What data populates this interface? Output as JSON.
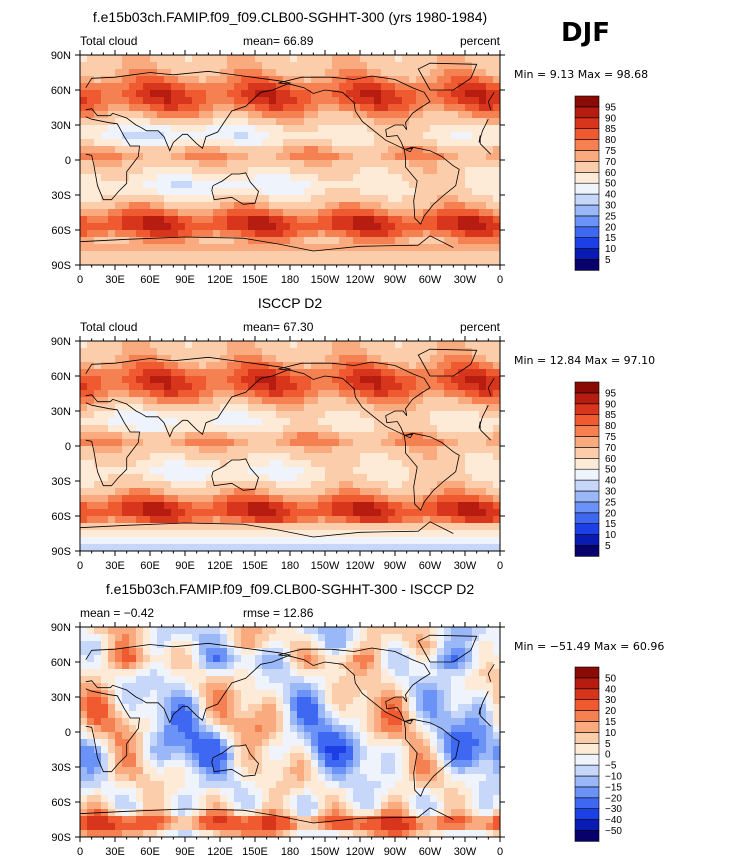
{
  "season": "DJF",
  "colorbar_fill": "#ffffff",
  "abs_colors": [
    "#08006b",
    "#0a1bb4",
    "#1c40e6",
    "#3f68f2",
    "#6b92f6",
    "#9ab8f8",
    "#c6d7fa",
    "#eef3fc",
    "#fdebd7",
    "#fbcdaa",
    "#f9aa7e",
    "#f58152",
    "#f05a30",
    "#d8361c",
    "#b71c10",
    "#8a0b06"
  ],
  "diff_colors": [
    "#08006b",
    "#0a1bb4",
    "#1c40e6",
    "#3f68f2",
    "#6b92f6",
    "#9ab8f8",
    "#c6d7fa",
    "#eef3fc",
    "#fdebd7",
    "#fbcdaa",
    "#f9aa7e",
    "#f58152",
    "#f05a30",
    "#d8361c",
    "#b71c10",
    "#8a0b06"
  ],
  "lon_labels": [
    "0",
    "30E",
    "60E",
    "90E",
    "120E",
    "150E",
    "180",
    "150W",
    "120W",
    "90W",
    "60W",
    "30W",
    "0"
  ],
  "lat_labels": [
    "90N",
    "60N",
    "30N",
    "0",
    "30S",
    "60S",
    "90S"
  ],
  "panels": [
    {
      "title": "f.e15b03ch.FAMIP.f09_f09.CLB00-SGHHT-300 (yrs 1980-1984)",
      "left_label": "Total cloud",
      "center_label": "mean=   66.89",
      "right_label": "percent",
      "minmax": "Min =    9.13 Max =  98.68",
      "levels": [
        "5",
        "10",
        "15",
        "20",
        "25",
        "30",
        "40",
        "50",
        "60",
        "70",
        "75",
        "80",
        "85",
        "90",
        "95"
      ],
      "kind": "model"
    },
    {
      "title": "ISCCP D2",
      "left_label": "Total cloud",
      "center_label": "mean=   67.30",
      "right_label": "percent",
      "minmax": "Min =  12.84 Max =  97.10",
      "levels": [
        "5",
        "10",
        "15",
        "20",
        "25",
        "30",
        "40",
        "50",
        "60",
        "70",
        "75",
        "80",
        "85",
        "90",
        "95"
      ],
      "kind": "obs"
    },
    {
      "title": "f.e15b03ch.FAMIP.f09_f09.CLB00-SGHHT-300 - ISCCP D2",
      "left_label": "mean =  −0.42",
      "center_label": "rmse =   12.86",
      "right_label": "",
      "minmax": "Min = −51.49 Max =  60.96",
      "levels": [
        "−50",
        "−40",
        "−30",
        "−20",
        "−15",
        "−10",
        "−5",
        "0",
        "5",
        "10",
        "15",
        "20",
        "30",
        "40",
        "50"
      ],
      "kind": "diff"
    }
  ]
}
